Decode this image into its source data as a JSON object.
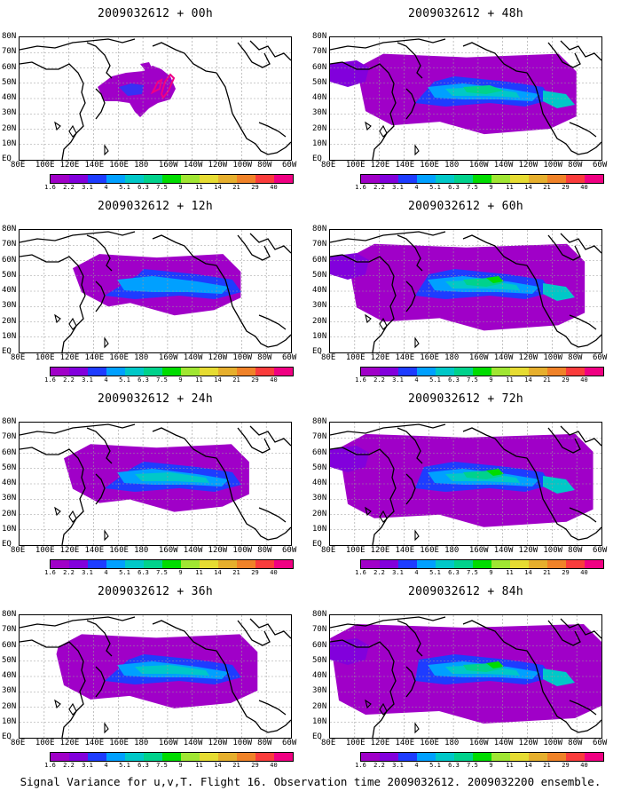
{
  "panels": [
    {
      "title": "2009032612 + 00h",
      "lead": 0
    },
    {
      "title": "2009032612 + 48h",
      "lead": 48
    },
    {
      "title": "2009032612 + 12h",
      "lead": 12
    },
    {
      "title": "2009032612 + 60h",
      "lead": 60
    },
    {
      "title": "2009032612 + 24h",
      "lead": 24
    },
    {
      "title": "2009032612 + 72h",
      "lead": 72
    },
    {
      "title": "2009032612 + 36h",
      "lead": 36
    },
    {
      "title": "2009032612 + 84h",
      "lead": 84
    }
  ],
  "lat_labels": [
    "80N",
    "70N",
    "60N",
    "50N",
    "40N",
    "30N",
    "20N",
    "10N",
    "EQ"
  ],
  "lon_labels": [
    "80E",
    "100E",
    "120E",
    "140E",
    "160E",
    "180",
    "160W",
    "140W",
    "120W",
    "100W",
    "80W",
    "60W"
  ],
  "colorbar": {
    "labels": [
      "1.6",
      "2.2",
      "3.1",
      "4",
      "5.1",
      "6.3",
      "7.5",
      "9",
      "11",
      "14",
      "21",
      "29",
      "40"
    ],
    "colors": [
      "#a000c8",
      "#8200dc",
      "#1e3cff",
      "#00a0ff",
      "#00c8c8",
      "#00d28c",
      "#00dc00",
      "#a0e632",
      "#e6dc32",
      "#e6af2d",
      "#f08228",
      "#fa3c3c",
      "#f00082"
    ]
  },
  "caption": "Signal Variance for u,v,T. Flight 16. Observation time 2009032612. 2009032200 ensemble."
}
